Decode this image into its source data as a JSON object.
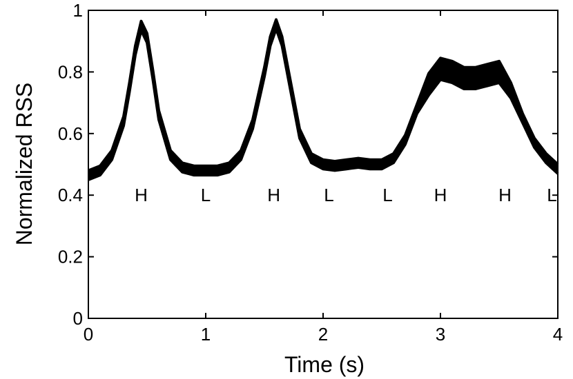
{
  "chart_data": {
    "type": "line",
    "x_label": "Time (s)",
    "y_label": "Normalized RSS",
    "xlim": [
      0,
      4
    ],
    "xticks": [
      0,
      1,
      2,
      3,
      4
    ],
    "ylim": [
      0,
      1
    ],
    "yticks": [
      0,
      0.2,
      0.4,
      0.6,
      0.8,
      1
    ],
    "grid": false,
    "color": "#000000",
    "x": [
      0,
      0.1,
      0.2,
      0.3,
      0.35,
      0.4,
      0.45,
      0.5,
      0.55,
      0.6,
      0.7,
      0.8,
      0.9,
      1.0,
      1.1,
      1.2,
      1.3,
      1.4,
      1.5,
      1.55,
      1.6,
      1.65,
      1.7,
      1.8,
      1.9,
      2.0,
      2.1,
      2.2,
      2.3,
      2.4,
      2.5,
      2.6,
      2.7,
      2.8,
      2.9,
      3.0,
      3.1,
      3.2,
      3.3,
      3.4,
      3.5,
      3.6,
      3.7,
      3.8,
      3.9,
      4.0
    ],
    "series": [
      {
        "color": "#000000",
        "values": [
          0.48,
          0.495,
          0.545,
          0.655,
          0.765,
          0.885,
          0.965,
          0.925,
          0.805,
          0.675,
          0.545,
          0.505,
          0.495,
          0.495,
          0.495,
          0.505,
          0.545,
          0.645,
          0.815,
          0.915,
          0.97,
          0.915,
          0.815,
          0.615,
          0.535,
          0.515,
          0.51,
          0.515,
          0.52,
          0.515,
          0.515,
          0.535,
          0.595,
          0.695,
          0.795,
          0.845,
          0.835,
          0.815,
          0.815,
          0.825,
          0.835,
          0.765,
          0.665,
          0.585,
          0.535,
          0.5
        ]
      },
      {
        "color": "#000000",
        "values": [
          0.45,
          0.465,
          0.515,
          0.625,
          0.735,
          0.855,
          0.935,
          0.895,
          0.775,
          0.645,
          0.515,
          0.475,
          0.465,
          0.465,
          0.465,
          0.475,
          0.515,
          0.615,
          0.785,
          0.885,
          0.94,
          0.885,
          0.785,
          0.585,
          0.505,
          0.485,
          0.48,
          0.485,
          0.49,
          0.485,
          0.485,
          0.505,
          0.565,
          0.665,
          0.725,
          0.775,
          0.765,
          0.745,
          0.745,
          0.755,
          0.765,
          0.715,
          0.635,
          0.555,
          0.505,
          0.47
        ]
      }
    ],
    "annotations": [
      {
        "text": "H",
        "x": 0.45,
        "y": 0.4
      },
      {
        "text": "L",
        "x": 1.0,
        "y": 0.4
      },
      {
        "text": "H",
        "x": 1.58,
        "y": 0.4
      },
      {
        "text": "L",
        "x": 2.05,
        "y": 0.4
      },
      {
        "text": "L",
        "x": 2.55,
        "y": 0.4
      },
      {
        "text": "H",
        "x": 3.0,
        "y": 0.4
      },
      {
        "text": "H",
        "x": 3.55,
        "y": 0.4
      },
      {
        "text": "L",
        "x": 3.95,
        "y": 0.4
      }
    ]
  }
}
